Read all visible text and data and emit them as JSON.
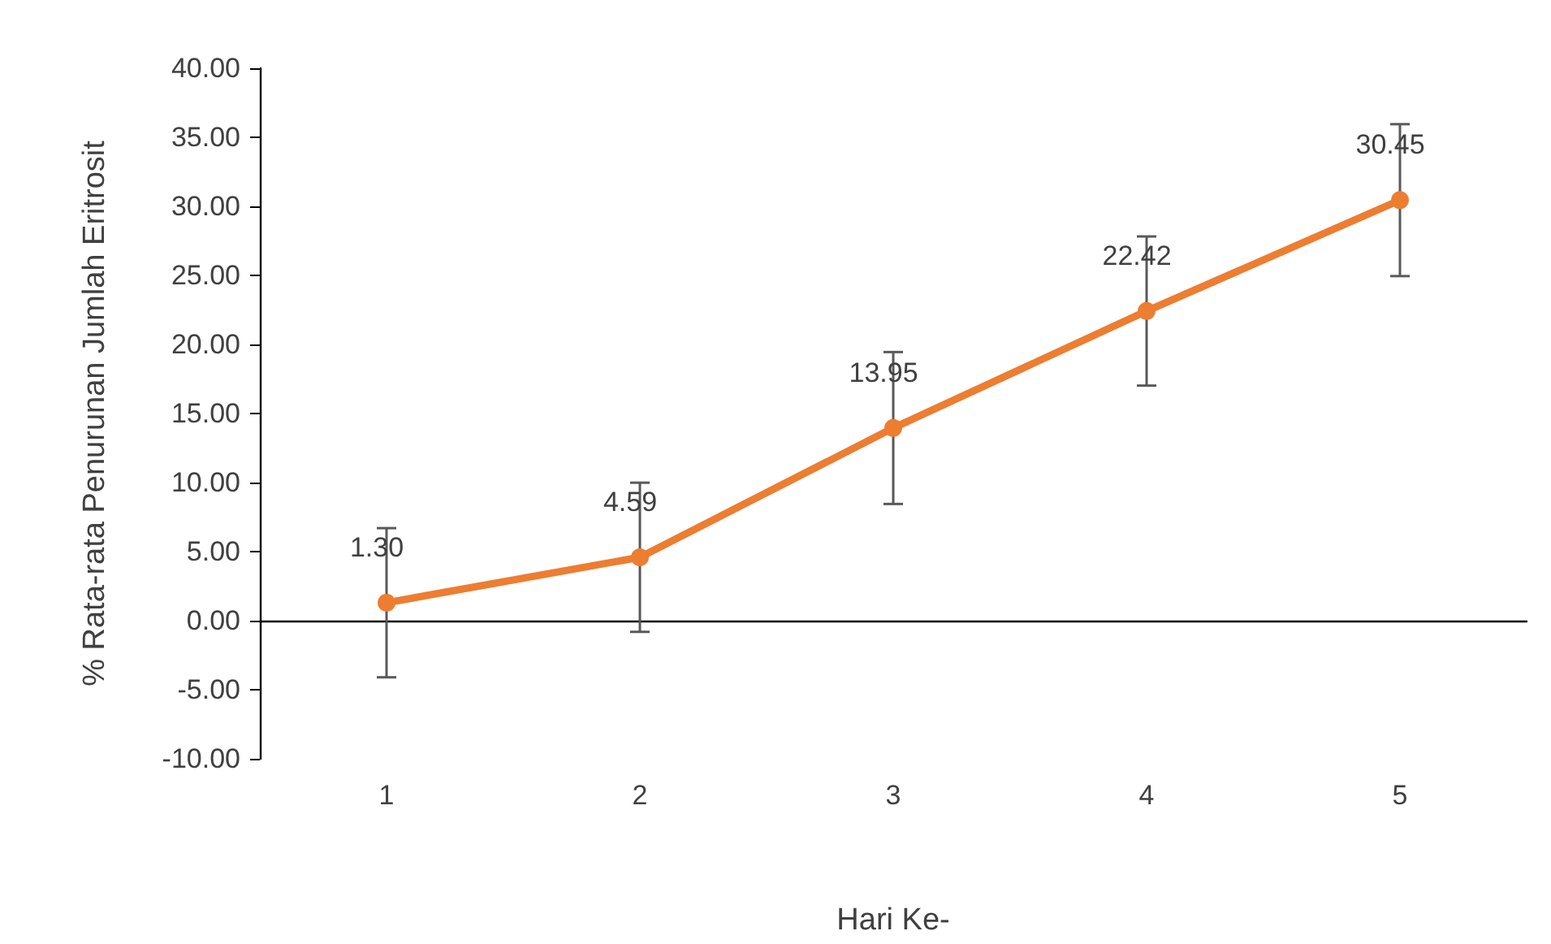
{
  "chart_data": {
    "type": "line",
    "xlabel": "Hari Ke-",
    "ylabel": "% Rata-rata Penurunan Jumlah Eritrosit",
    "categories": [
      "1",
      "2",
      "3",
      "4",
      "5"
    ],
    "series": [
      {
        "color": "#ed7d31",
        "values": [
          1.3,
          4.59,
          13.95,
          22.42,
          30.45
        ],
        "errors": [
          5.4,
          5.4,
          5.5,
          5.4,
          5.5
        ],
        "value_labels": [
          "1.30",
          "4.59",
          "13.95",
          "22.42",
          "30.45"
        ]
      }
    ],
    "ylim": [
      -10,
      40
    ],
    "yticks": [
      {
        "value": -10,
        "label": "-10.00"
      },
      {
        "value": -5,
        "label": "-5.00"
      },
      {
        "value": 0,
        "label": "0.00"
      },
      {
        "value": 5,
        "label": "5.00"
      },
      {
        "value": 10,
        "label": "10.00"
      },
      {
        "value": 15,
        "label": "15.00"
      },
      {
        "value": 20,
        "label": "20.00"
      },
      {
        "value": 25,
        "label": "25.00"
      },
      {
        "value": 30,
        "label": "30.00"
      },
      {
        "value": 35,
        "label": "35.00"
      },
      {
        "value": 40,
        "label": "40.00"
      }
    ],
    "marker": "circle",
    "line_style": "solid"
  }
}
